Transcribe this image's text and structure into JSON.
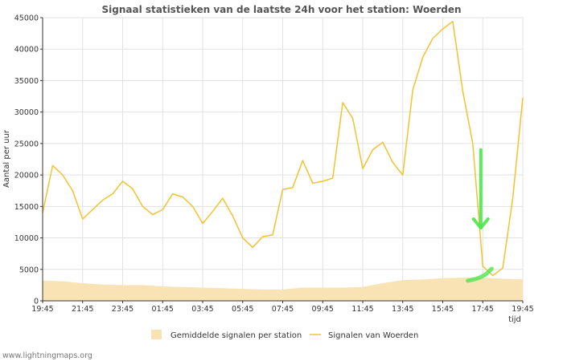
{
  "chart_data": {
    "type": "line",
    "title": "Signaal statistieken van de laatste 24h voor het station: Woerden",
    "xlabel": "tijd",
    "ylabel": "Aantal per uur",
    "ylim": [
      0,
      45000
    ],
    "yticks": [
      0,
      5000,
      10000,
      15000,
      20000,
      25000,
      30000,
      35000,
      40000,
      45000
    ],
    "xtick_labels": [
      "19:45",
      "21:45",
      "23:45",
      "01:45",
      "03:45",
      "05:45",
      "07:45",
      "09:45",
      "11:45",
      "13:45",
      "15:45",
      "17:45",
      "19:45"
    ],
    "x_hours": [
      0,
      0.5,
      1,
      1.5,
      2,
      2.5,
      3,
      3.5,
      4,
      4.5,
      5,
      5.5,
      6,
      6.5,
      7,
      7.5,
      8,
      8.5,
      9,
      9.5,
      10,
      10.5,
      11,
      11.5,
      12,
      12.5,
      13,
      13.5,
      14,
      14.5,
      15,
      15.5,
      16,
      16.5,
      17,
      17.5,
      18,
      18.5,
      19,
      19.5,
      20,
      20.5,
      21,
      21.5,
      22,
      22.5,
      23,
      23.5,
      24
    ],
    "grid": true,
    "legend_position": "bottom",
    "series": [
      {
        "name": "Gemiddelde signalen per station",
        "kind": "area",
        "color": "#f9e2b4",
        "x_hours": [
          0,
          1,
          2,
          3,
          4,
          5,
          6,
          7,
          8,
          9,
          10,
          11,
          12,
          13,
          14,
          15,
          16,
          17,
          18,
          19,
          20,
          21,
          22,
          23,
          24
        ],
        "values": [
          3200,
          3100,
          2800,
          2600,
          2500,
          2500,
          2300,
          2200,
          2100,
          2000,
          1900,
          1800,
          1800,
          2100,
          2100,
          2100,
          2200,
          2800,
          3300,
          3400,
          3600,
          3700,
          3700,
          3500,
          3400
        ]
      },
      {
        "name": "Signalen van Woerden",
        "kind": "line",
        "color": "#f2c230",
        "values": [
          14000,
          21500,
          20000,
          17500,
          13000,
          14500,
          16000,
          17000,
          19000,
          17800,
          15000,
          13700,
          14500,
          17000,
          16500,
          15000,
          12300,
          14200,
          16300,
          13500,
          10000,
          8500,
          10200,
          10500,
          17700,
          18000,
          22300,
          18700,
          19000,
          19500,
          31500,
          29000,
          21000,
          24000,
          25200,
          22000,
          20000,
          33500,
          38700,
          41700,
          43200,
          44400,
          33300,
          25000,
          5500,
          4000,
          5200,
          16300,
          32300
        ]
      }
    ],
    "highlight": {
      "color": "#4ee54e"
    }
  },
  "credit": "www.lightningmaps.org"
}
